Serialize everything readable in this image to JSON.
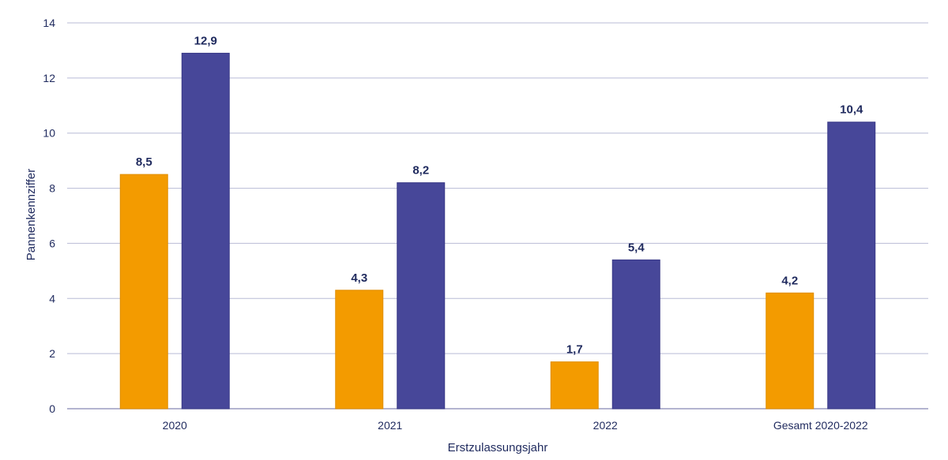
{
  "chart_data": {
    "type": "bar",
    "title": "",
    "xlabel": "Erstzulassungsjahr",
    "ylabel": "Pannenkennziffer",
    "ylim": [
      0,
      14
    ],
    "yticks": [
      0,
      2,
      4,
      6,
      8,
      10,
      12,
      14
    ],
    "grid": true,
    "legend": "none",
    "categories": [
      "2020",
      "2021",
      "2022",
      "Gesamt 2020-2022"
    ],
    "series": [
      {
        "color": "#f39b00",
        "values": [
          8.5,
          4.3,
          1.7,
          4.2
        ],
        "labels": [
          "8,5",
          "4,3",
          "1,7",
          "4,2"
        ]
      },
      {
        "color": "#474799",
        "values": [
          12.9,
          8.2,
          5.4,
          10.4
        ],
        "labels": [
          "12,9",
          "8,2",
          "5,4",
          "10,4"
        ]
      }
    ]
  }
}
